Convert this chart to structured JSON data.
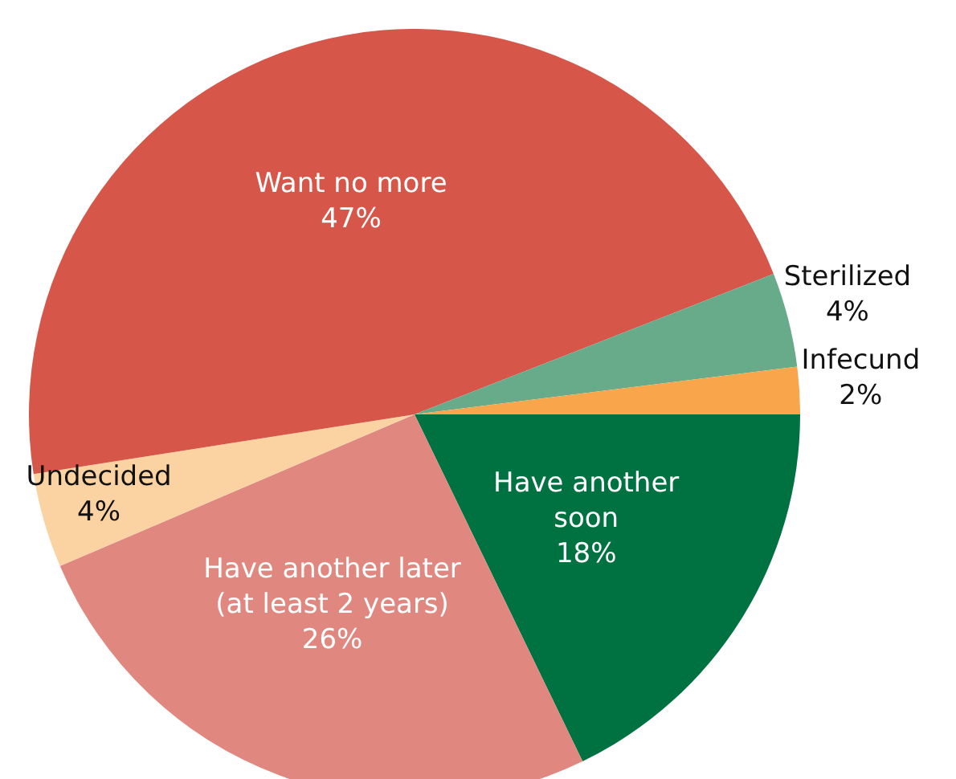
{
  "chart_data": {
    "type": "pie",
    "categories": [
      "Have another\nsoon",
      "Have another later\n(at least 2 years)",
      "Undecided",
      "Want no more",
      "Sterilized",
      "Infecund"
    ],
    "values": [
      18,
      26,
      4,
      47,
      4,
      2
    ],
    "value_labels": [
      "18%",
      "26%",
      "4%",
      "47%",
      "4%",
      "2%"
    ],
    "colors": [
      "#007140",
      "#e08880",
      "#fbd3a2",
      "#d6564a",
      "#68ab8a",
      "#f8a54c"
    ],
    "legend": false
  }
}
